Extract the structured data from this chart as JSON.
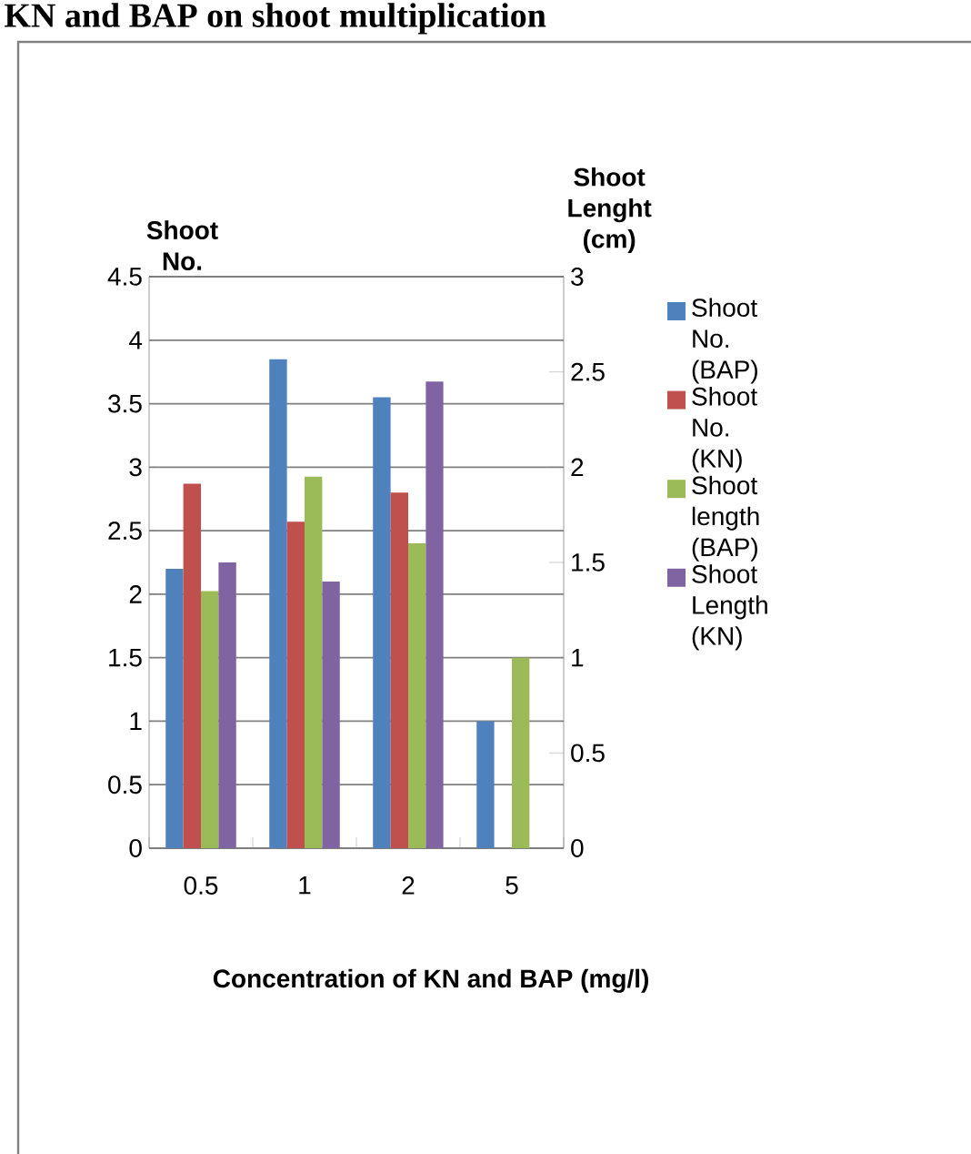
{
  "chart_data": {
    "type": "bar",
    "title": "KN and BAP on shoot multiplication",
    "xlabel": "Concentration of KN and BAP (mg/l)",
    "ylabel": "Shoot No.",
    "y2label": "Shoot Lenght (cm)",
    "categories": [
      "0.5",
      "1",
      "2",
      "5"
    ],
    "series": [
      {
        "name": "Shoot No. (BAP)",
        "color": "#4f81bd",
        "values": [
          2.2,
          3.85,
          3.55,
          1.0
        ]
      },
      {
        "name": "Shoot No. (KN)",
        "color": "#c0504d",
        "values": [
          2.87,
          2.57,
          2.8,
          null
        ]
      },
      {
        "name": "Shoot length (BAP)",
        "color": "#9bbb59",
        "axis": "y2",
        "values": [
          1.35,
          1.95,
          1.6,
          1.0
        ]
      },
      {
        "name": "Shoot Length (KN)",
        "color": "#8064a2",
        "axis": "y2",
        "values": [
          1.5,
          1.4,
          2.45,
          null
        ]
      }
    ],
    "ylim": [
      0,
      4.5
    ],
    "yticks": [
      0,
      0.5,
      1,
      1.5,
      2,
      2.5,
      3,
      3.5,
      4,
      4.5
    ],
    "y2lim": [
      0,
      3
    ],
    "y2ticks": [
      0,
      0.5,
      1,
      1.5,
      2,
      2.5,
      3
    ],
    "grid": "y",
    "legend": "right"
  }
}
